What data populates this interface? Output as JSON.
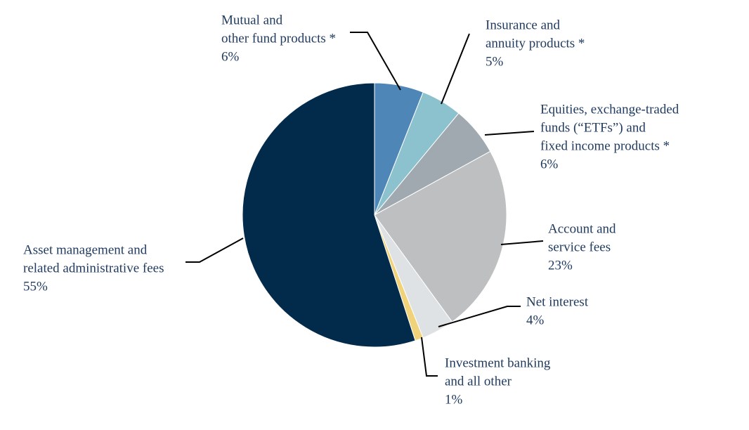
{
  "chart_data": {
    "type": "pie",
    "title": "",
    "unit": "%",
    "slices": [
      {
        "name": "mutual-fund",
        "lines": [
          "Mutual and",
          "other fund products *"
        ],
        "value_label": "6%",
        "value": 6,
        "color": "#4e86b8"
      },
      {
        "name": "insurance-annuity",
        "lines": [
          "Insurance and",
          "annuity products *"
        ],
        "value_label": "5%",
        "value": 5,
        "color": "#8cc1ce"
      },
      {
        "name": "equities-etf",
        "lines": [
          "Equities, exchange-traded",
          "funds (“ETFs”) and",
          "fixed income products *"
        ],
        "value_label": "6%",
        "value": 6,
        "color": "#a0a8b0"
      },
      {
        "name": "account-service-fees",
        "lines": [
          "Account and",
          "service fees"
        ],
        "value_label": "23%",
        "value": 23,
        "color": "#bdbfc1"
      },
      {
        "name": "net-interest",
        "lines": [
          "Net interest"
        ],
        "value_label": "4%",
        "value": 4,
        "color": "#dfe2e5"
      },
      {
        "name": "investment-banking",
        "lines": [
          "Investment banking",
          "and all other"
        ],
        "value_label": "1%",
        "value": 1,
        "color": "#f0d27a"
      },
      {
        "name": "asset-management",
        "lines": [
          "Asset management and",
          "related administrative fees"
        ],
        "value_label": "55%",
        "value": 55,
        "color": "#022a4a"
      }
    ]
  }
}
